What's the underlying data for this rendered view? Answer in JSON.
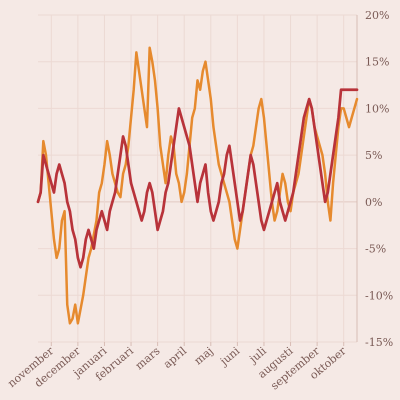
{
  "chart_data": {
    "type": "line",
    "title": "",
    "xlabel": "",
    "ylabel": "",
    "x_ticks": [
      "november",
      "december",
      "januari",
      "februari",
      "mars",
      "april",
      "maj",
      "juni",
      "juli",
      "augusti",
      "september",
      "oktober"
    ],
    "x_tick_positions": [
      0.5,
      1.5,
      2.5,
      3.5,
      4.5,
      5.5,
      6.5,
      7.5,
      8.5,
      9.5,
      10.5,
      11.5
    ],
    "x_range": [
      0,
      12
    ],
    "y_ticks": [
      "20%",
      "15%",
      "10%",
      "5%",
      "0%",
      "-5%",
      "-10%",
      "-15%"
    ],
    "y_tick_values": [
      20,
      15,
      10,
      5,
      0,
      -5,
      -10,
      -15
    ],
    "ylim": [
      -15,
      20
    ],
    "grid": true,
    "series": [
      {
        "color": "#e68a2e",
        "x": [
          0.0,
          0.1,
          0.2,
          0.3,
          0.4,
          0.5,
          0.6,
          0.7,
          0.8,
          0.9,
          1.0,
          1.1,
          1.2,
          1.3,
          1.4,
          1.5,
          1.6,
          1.7,
          1.8,
          1.9,
          2.0,
          2.1,
          2.2,
          2.3,
          2.4,
          2.5,
          2.6,
          2.7,
          2.8,
          2.9,
          3.0,
          3.1,
          3.2,
          3.3,
          3.4,
          3.5,
          3.6,
          3.7,
          3.8,
          3.9,
          4.0,
          4.1,
          4.2,
          4.3,
          4.4,
          4.5,
          4.6,
          4.7,
          4.8,
          4.9,
          5.0,
          5.1,
          5.2,
          5.3,
          5.4,
          5.5,
          5.6,
          5.7,
          5.8,
          5.9,
          6.0,
          6.1,
          6.2,
          6.3,
          6.4,
          6.5,
          6.6,
          6.7,
          6.8,
          6.9,
          7.0,
          7.1,
          7.2,
          7.3,
          7.4,
          7.5,
          7.6,
          7.7,
          7.8,
          7.9,
          8.0,
          8.1,
          8.2,
          8.3,
          8.4,
          8.5,
          8.6,
          8.7,
          8.8,
          8.9,
          9.0,
          9.1,
          9.2,
          9.3,
          9.4,
          9.5,
          9.6,
          9.7,
          9.8,
          9.9,
          10.0,
          10.1,
          10.2,
          10.3,
          10.4,
          10.5,
          10.6,
          10.7,
          10.8,
          10.9,
          11.0,
          11.1,
          11.2,
          11.3,
          11.4,
          11.5,
          11.6,
          11.7,
          11.8,
          11.9,
          12.0
        ],
        "values": [
          0,
          1,
          6.5,
          5,
          2,
          -1,
          -4,
          -6,
          -5,
          -2,
          -1,
          -11,
          -13,
          -12.5,
          -11,
          -13,
          -11.5,
          -10,
          -8,
          -6,
          -5,
          -3.5,
          -2,
          1,
          2,
          4,
          6.5,
          5,
          3,
          2,
          1,
          0.5,
          3,
          4,
          6,
          9,
          12,
          16,
          14,
          12,
          10,
          8,
          16.5,
          15,
          13,
          10,
          6,
          4,
          2,
          5,
          7,
          6,
          3,
          2,
          0,
          1,
          3,
          6,
          9,
          10,
          13,
          12,
          14,
          15,
          13,
          11,
          8,
          6,
          4,
          3,
          2,
          1,
          0,
          -2,
          -4,
          -5,
          -3,
          -1,
          1,
          3,
          5,
          6,
          8,
          10,
          11,
          9,
          6,
          3,
          0,
          -2,
          -1,
          1,
          3,
          2,
          0,
          -1,
          1,
          2,
          3,
          5,
          7,
          9,
          11,
          10,
          8,
          7,
          6,
          5,
          3,
          0,
          -2,
          2,
          5,
          8,
          10,
          10,
          9,
          8,
          9,
          10,
          11
        ]
      },
      {
        "color": "#b8333a",
        "x": [
          0.0,
          0.1,
          0.2,
          0.3,
          0.4,
          0.5,
          0.6,
          0.7,
          0.8,
          0.9,
          1.0,
          1.1,
          1.2,
          1.3,
          1.4,
          1.5,
          1.6,
          1.7,
          1.8,
          1.9,
          2.0,
          2.1,
          2.2,
          2.3,
          2.4,
          2.5,
          2.6,
          2.7,
          2.8,
          2.9,
          3.0,
          3.1,
          3.2,
          3.3,
          3.4,
          3.5,
          3.6,
          3.7,
          3.8,
          3.9,
          4.0,
          4.1,
          4.2,
          4.3,
          4.4,
          4.5,
          4.6,
          4.7,
          4.8,
          4.9,
          5.0,
          5.1,
          5.2,
          5.3,
          5.4,
          5.5,
          5.6,
          5.7,
          5.8,
          5.9,
          6.0,
          6.1,
          6.2,
          6.3,
          6.4,
          6.5,
          6.6,
          6.7,
          6.8,
          6.9,
          7.0,
          7.1,
          7.2,
          7.3,
          7.4,
          7.5,
          7.6,
          7.7,
          7.8,
          7.9,
          8.0,
          8.1,
          8.2,
          8.3,
          8.4,
          8.5,
          8.6,
          8.7,
          8.8,
          8.9,
          9.0,
          9.1,
          9.2,
          9.3,
          9.4,
          9.5,
          9.6,
          9.7,
          9.8,
          9.9,
          10.0,
          10.1,
          10.2,
          10.3,
          10.4,
          10.5,
          10.6,
          10.7,
          10.8,
          10.9,
          11.0,
          11.1,
          11.2,
          11.3,
          11.4,
          11.5,
          11.6,
          11.7,
          11.8,
          11.9,
          12.0
        ],
        "values": [
          0,
          1,
          5,
          4,
          3,
          2,
          1,
          3,
          4,
          3,
          2,
          0,
          -1,
          -3,
          -4,
          -6,
          -7,
          -6,
          -4,
          -3,
          -4,
          -5,
          -3,
          -2,
          -1,
          -2,
          -3,
          -1,
          0,
          1,
          3,
          5,
          7,
          6,
          4,
          2,
          1,
          0,
          -1,
          -2,
          -1,
          1,
          2,
          1,
          -1,
          -3,
          -2,
          -1,
          1,
          2,
          4,
          6,
          8,
          10,
          9,
          8,
          7,
          6,
          4,
          2,
          0,
          2,
          3,
          4,
          1,
          -1,
          -2,
          -1,
          0,
          2,
          3,
          5,
          6,
          4,
          2,
          0,
          -2,
          -1,
          1,
          3,
          5,
          4,
          2,
          0,
          -2,
          -3,
          -2,
          -1,
          0,
          1,
          2,
          0,
          -1,
          -2,
          -1,
          0,
          1,
          3,
          5,
          7,
          9,
          10,
          11,
          10,
          8,
          6,
          4,
          2,
          0,
          1,
          3,
          5,
          7,
          9,
          12,
          12,
          12,
          12,
          12,
          12,
          12
        ]
      }
    ]
  }
}
